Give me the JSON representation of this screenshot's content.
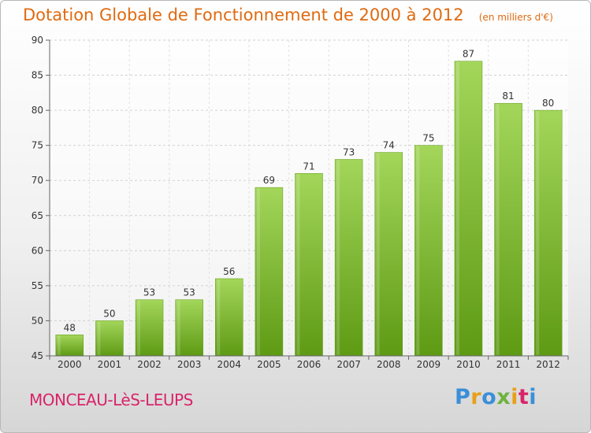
{
  "chart_data": {
    "type": "bar",
    "title": "Dotation Globale de Fonctionnement de 2000 à 2012",
    "subtitle": "(en milliers d'€)",
    "categories": [
      "2000",
      "2001",
      "2002",
      "2003",
      "2004",
      "2005",
      "2006",
      "2007",
      "2008",
      "2009",
      "2010",
      "2011",
      "2012"
    ],
    "values": [
      48,
      50,
      53,
      53,
      56,
      69,
      71,
      73,
      74,
      75,
      87,
      81,
      80
    ],
    "ylim": [
      45,
      90
    ],
    "yticks": [
      45,
      50,
      55,
      60,
      65,
      70,
      75,
      80,
      85,
      90
    ],
    "grid": true,
    "bar_color": "#7fbf2e",
    "bar_color_light": "#a3d65a",
    "bar_color_dark": "#5e9a14"
  },
  "footer": {
    "location": "MONCEAU-LèS-LEUPS",
    "brand": "Proxiti",
    "brand_colors": [
      "#3a8fd8",
      "#e8a01a",
      "#3a8fd8",
      "#6db33f",
      "#e8a01a",
      "#d9246a",
      "#3a8fd8"
    ]
  }
}
